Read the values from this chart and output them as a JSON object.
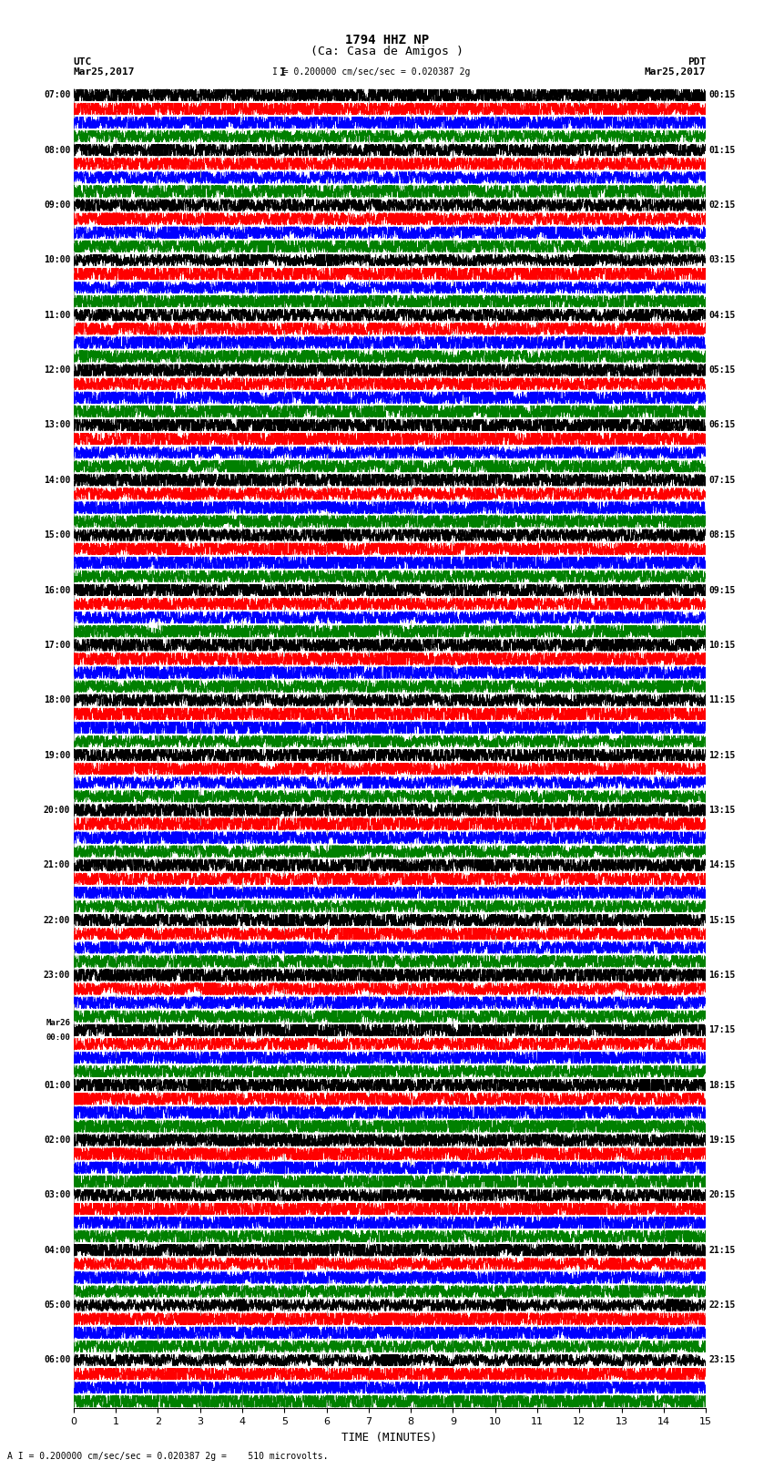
{
  "title_line1": "1794 HHZ NP",
  "title_line2": "(Ca: Casa de Amigos )",
  "scale_text": "I = 0.200000 cm/sec/sec = 0.020387 2g",
  "footer_text": "A I = 0.200000 cm/sec/sec = 0.020387 2g =    510 microvolts.",
  "xlabel": "TIME (MINUTES)",
  "xticks": [
    0,
    1,
    2,
    3,
    4,
    5,
    6,
    7,
    8,
    9,
    10,
    11,
    12,
    13,
    14,
    15
  ],
  "minutes_per_row": 15,
  "num_rows": 96,
  "colors": [
    "black",
    "red",
    "blue",
    "green"
  ],
  "bg_color": "white",
  "fig_width": 8.5,
  "fig_height": 16.13,
  "utc_labels": [
    "07:00",
    "",
    "",
    "",
    "08:00",
    "",
    "",
    "",
    "09:00",
    "",
    "",
    "",
    "10:00",
    "",
    "",
    "",
    "11:00",
    "",
    "",
    "",
    "12:00",
    "",
    "",
    "",
    "13:00",
    "",
    "",
    "",
    "14:00",
    "",
    "",
    "",
    "15:00",
    "",
    "",
    "",
    "16:00",
    "",
    "",
    "",
    "17:00",
    "",
    "",
    "",
    "18:00",
    "",
    "",
    "",
    "19:00",
    "",
    "",
    "",
    "20:00",
    "",
    "",
    "",
    "21:00",
    "",
    "",
    "",
    "22:00",
    "",
    "",
    "",
    "23:00",
    "",
    "",
    "",
    "Mar26\n00:00",
    "",
    "",
    "",
    "01:00",
    "",
    "",
    "",
    "02:00",
    "",
    "",
    "",
    "03:00",
    "",
    "",
    "",
    "04:00",
    "",
    "",
    "",
    "05:00",
    "",
    "",
    "",
    "06:00",
    "",
    "",
    ""
  ],
  "pdt_labels": [
    "00:15",
    "",
    "",
    "",
    "01:15",
    "",
    "",
    "",
    "02:15",
    "",
    "",
    "",
    "03:15",
    "",
    "",
    "",
    "04:15",
    "",
    "",
    "",
    "05:15",
    "",
    "",
    "",
    "06:15",
    "",
    "",
    "",
    "07:15",
    "",
    "",
    "",
    "08:15",
    "",
    "",
    "",
    "09:15",
    "",
    "",
    "",
    "10:15",
    "",
    "",
    "",
    "11:15",
    "",
    "",
    "",
    "12:15",
    "",
    "",
    "",
    "13:15",
    "",
    "",
    "",
    "14:15",
    "",
    "",
    "",
    "15:15",
    "",
    "",
    "",
    "16:15",
    "",
    "",
    "",
    "17:15",
    "",
    "",
    "",
    "18:15",
    "",
    "",
    "",
    "19:15",
    "",
    "",
    "",
    "20:15",
    "",
    "",
    "",
    "21:15",
    "",
    "",
    "",
    "22:15",
    "",
    "",
    "",
    "23:15",
    "",
    "",
    ""
  ]
}
